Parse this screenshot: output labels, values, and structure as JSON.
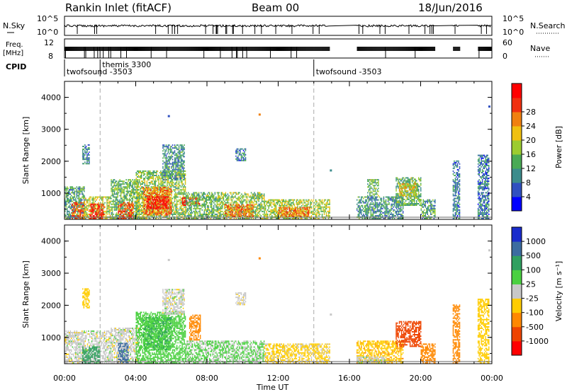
{
  "header": {
    "title": "Rankin Inlet (fitACF)",
    "beam": "Beam 00",
    "date": "18/Jun/2016"
  },
  "sky_panel": {
    "left_label": "N.Sky",
    "left_ticks": [
      "10^5",
      "10^0"
    ],
    "right_label": "N.Search",
    "right_ticks": [
      "10^5",
      "10^0"
    ],
    "right_legend_line": "dotted"
  },
  "freq_panel": {
    "left_label_1": "Freq.",
    "left_label_2": "[MHz]",
    "left_ticks": [
      "12",
      "8"
    ],
    "right_label": "Nave",
    "right_ticks": [
      "60",
      "0"
    ]
  },
  "cpid": {
    "label": "CPID",
    "segments": [
      {
        "start_ut": "00:00",
        "name": "twofsound -3503"
      },
      {
        "start_ut": "02:00",
        "name": "themis 3300"
      },
      {
        "start_ut": "14:00",
        "name": "twofsound -3503"
      }
    ]
  },
  "x_axis": {
    "label": "Time UT",
    "ticks": [
      "00:00",
      "04:00",
      "08:00",
      "12:00",
      "16:00",
      "20:00",
      "00:00"
    ],
    "range_hours": [
      0,
      24
    ]
  },
  "colors": {
    "power": [
      "#0000ff",
      "#3050c0",
      "#3c8c8c",
      "#4aaa55",
      "#9ccc30",
      "#f0c010",
      "#f08010",
      "#f03010",
      "#ff0000"
    ],
    "velocity": [
      "#ff0000",
      "#ee4400",
      "#ff8800",
      "#ffcc00",
      "#c8c8c8",
      "#4ad040",
      "#30a060",
      "#3c6ca0",
      "#1a2ccc"
    ]
  },
  "chart_data": [
    {
      "type": "heatmap",
      "name": "power",
      "ylabel": "Slant Range [km]",
      "yticks": [
        "1000",
        "2000",
        "3000",
        "4000"
      ],
      "ylim": [
        180,
        4500
      ],
      "colorbar": {
        "label": "Power [dB]",
        "ticks": [
          "4",
          "8",
          "12",
          "16",
          "20",
          "24",
          "28"
        ],
        "range": [
          0,
          30
        ]
      },
      "blobs": [
        {
          "t0": 0.0,
          "t1": 1.1,
          "r0": 180,
          "r1": 1200,
          "v": 10
        },
        {
          "t0": 0.4,
          "t1": 1.1,
          "r0": 180,
          "r1": 700,
          "v": 24
        },
        {
          "t0": 1.1,
          "t1": 2.6,
          "r0": 180,
          "r1": 900,
          "v": 16
        },
        {
          "t0": 1.4,
          "t1": 2.2,
          "r0": 180,
          "r1": 650,
          "v": 27
        },
        {
          "t0": 1.0,
          "t1": 1.4,
          "r0": 1900,
          "r1": 2500,
          "v": 8
        },
        {
          "t0": 2.6,
          "t1": 4.2,
          "r0": 180,
          "r1": 1400,
          "v": 12
        },
        {
          "t0": 3.0,
          "t1": 3.9,
          "r0": 180,
          "r1": 700,
          "v": 24
        },
        {
          "t0": 4.0,
          "t1": 6.8,
          "r0": 180,
          "r1": 1700,
          "v": 14
        },
        {
          "t0": 4.4,
          "t1": 6.0,
          "r0": 300,
          "r1": 1200,
          "v": 22
        },
        {
          "t0": 4.6,
          "t1": 5.8,
          "r0": 500,
          "r1": 900,
          "v": 28
        },
        {
          "t0": 5.5,
          "t1": 6.7,
          "r0": 1400,
          "r1": 2500,
          "v": 9
        },
        {
          "t0": 6.6,
          "t1": 7.6,
          "r0": 600,
          "r1": 850,
          "v": 27
        },
        {
          "t0": 6.8,
          "t1": 8.6,
          "r0": 180,
          "r1": 1000,
          "v": 12
        },
        {
          "t0": 8.6,
          "t1": 11.2,
          "r0": 180,
          "r1": 1000,
          "v": 14
        },
        {
          "t0": 9.0,
          "t1": 10.6,
          "r0": 250,
          "r1": 650,
          "v": 22
        },
        {
          "t0": 9.6,
          "t1": 10.2,
          "r0": 2000,
          "r1": 2400,
          "v": 8
        },
        {
          "t0": 11.2,
          "t1": 14.9,
          "r0": 180,
          "r1": 800,
          "v": 15
        },
        {
          "t0": 12.0,
          "t1": 13.8,
          "r0": 250,
          "r1": 550,
          "v": 22
        },
        {
          "t0": 16.4,
          "t1": 19.0,
          "r0": 180,
          "r1": 900,
          "v": 9
        },
        {
          "t0": 17.0,
          "t1": 17.6,
          "r0": 900,
          "r1": 1400,
          "v": 12
        },
        {
          "t0": 18.6,
          "t1": 20.0,
          "r0": 600,
          "r1": 1500,
          "v": 12
        },
        {
          "t0": 18.8,
          "t1": 19.8,
          "r0": 900,
          "r1": 1300,
          "v": 18
        },
        {
          "t0": 20.0,
          "t1": 20.8,
          "r0": 180,
          "r1": 800,
          "v": 10
        },
        {
          "t0": 21.8,
          "t1": 22.2,
          "r0": 180,
          "r1": 2000,
          "v": 8
        },
        {
          "t0": 23.2,
          "t1": 23.8,
          "r0": 180,
          "r1": 2200,
          "v": 7
        }
      ],
      "speckles": [
        {
          "t": 10.9,
          "r": 3450,
          "v": 22
        },
        {
          "t": 5.8,
          "r": 3400,
          "v": 6
        },
        {
          "t": 14.9,
          "r": 1700,
          "v": 8
        },
        {
          "t": 23.8,
          "r": 3700,
          "v": 4
        }
      ]
    },
    {
      "type": "heatmap",
      "name": "velocity",
      "ylabel": "Slant Range [km]",
      "yticks": [
        "1000",
        "2000",
        "3000",
        "4000"
      ],
      "ylim": [
        180,
        4500
      ],
      "colorbar": {
        "label": "Velocity [m s⁻¹]",
        "ticks": [
          "-1000",
          "-500",
          "-100",
          "-25",
          "25",
          "100",
          "500",
          "1000"
        ]
      },
      "blobs": [
        {
          "t0": 0.0,
          "t1": 2.6,
          "r0": 180,
          "r1": 1200,
          "v": 0
        },
        {
          "t0": 1.0,
          "t1": 2.0,
          "r0": 180,
          "r1": 700,
          "v": 300
        },
        {
          "t0": 1.0,
          "t1": 1.4,
          "r0": 1900,
          "r1": 2500,
          "v": -60
        },
        {
          "t0": 2.6,
          "t1": 4.2,
          "r0": 180,
          "r1": 1300,
          "v": 0
        },
        {
          "t0": 3.0,
          "t1": 3.6,
          "r0": 200,
          "r1": 800,
          "v": 900
        },
        {
          "t0": 4.0,
          "t1": 6.8,
          "r0": 180,
          "r1": 1800,
          "v": 60
        },
        {
          "t0": 4.4,
          "t1": 6.0,
          "r0": 600,
          "r1": 1600,
          "v": 90
        },
        {
          "t0": 5.5,
          "t1": 6.7,
          "r0": 1700,
          "r1": 2500,
          "v": 0
        },
        {
          "t0": 7.0,
          "t1": 7.6,
          "r0": 900,
          "r1": 1700,
          "v": -300
        },
        {
          "t0": 6.8,
          "t1": 11.2,
          "r0": 180,
          "r1": 900,
          "v": 30
        },
        {
          "t0": 9.6,
          "t1": 10.2,
          "r0": 2000,
          "r1": 2400,
          "v": 0
        },
        {
          "t0": 11.2,
          "t1": 14.9,
          "r0": 180,
          "r1": 800,
          "v": -40
        },
        {
          "t0": 16.4,
          "t1": 19.0,
          "r0": 180,
          "r1": 900,
          "v": -80
        },
        {
          "t0": 16.4,
          "t1": 18.0,
          "r0": 180,
          "r1": 400,
          "v": 0
        },
        {
          "t0": 18.6,
          "t1": 20.0,
          "r0": 700,
          "r1": 1500,
          "v": -700
        },
        {
          "t0": 20.0,
          "t1": 20.8,
          "r0": 180,
          "r1": 800,
          "v": -200
        },
        {
          "t0": 21.8,
          "t1": 22.2,
          "r0": 180,
          "r1": 2000,
          "v": -150
        },
        {
          "t0": 23.2,
          "t1": 23.8,
          "r0": 180,
          "r1": 2200,
          "v": -60
        }
      ],
      "speckles": [
        {
          "t": 10.9,
          "r": 3450,
          "v": -200
        },
        {
          "t": 5.8,
          "r": 3400,
          "v": 0
        },
        {
          "t": 14.9,
          "r": 1700,
          "v": 0
        },
        {
          "t": 23.8,
          "r": 3700,
          "v": 0
        }
      ]
    }
  ]
}
